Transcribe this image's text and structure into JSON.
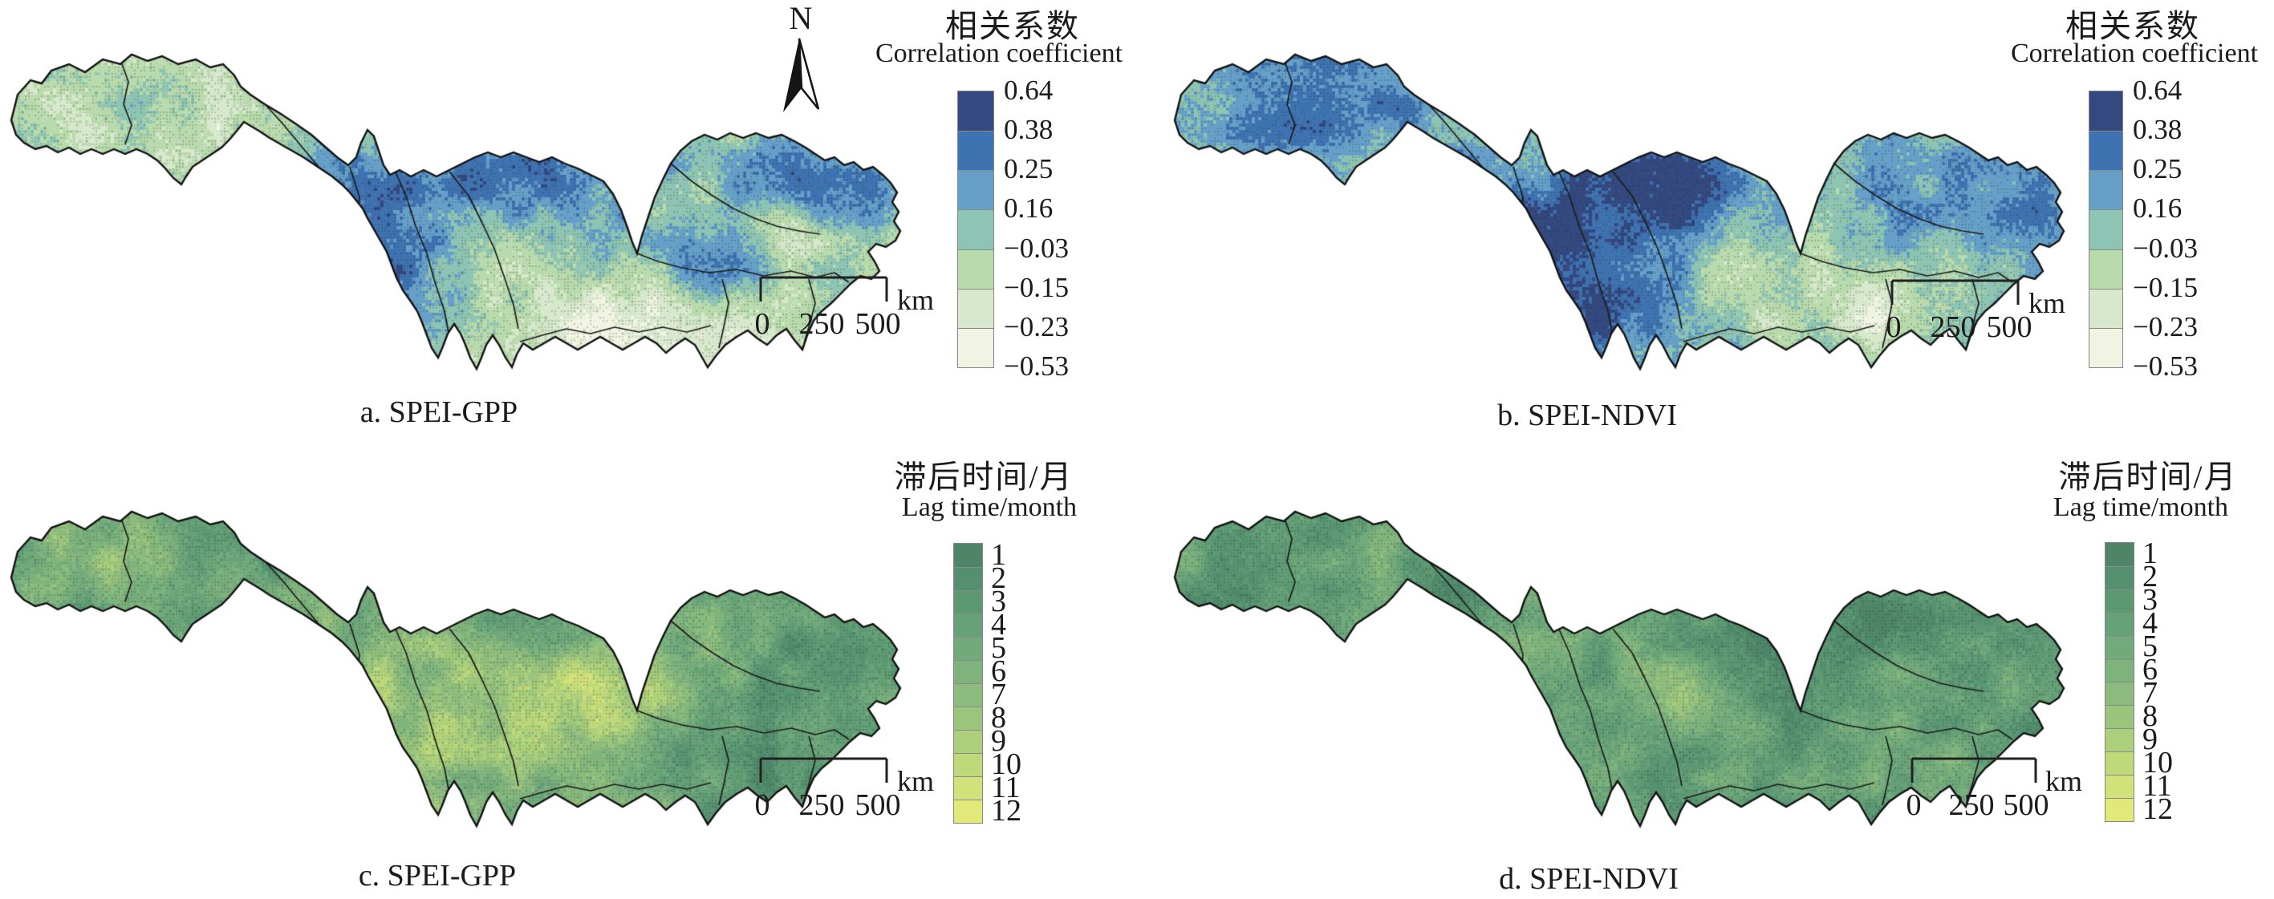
{
  "figure": {
    "north_label": "N",
    "scale_bar": {
      "tick0": "0",
      "tick1": "250",
      "tick2": "500",
      "unit": "km"
    },
    "panels": [
      {
        "id": "a",
        "caption": "a. SPEI-GPP",
        "legend": "correlation"
      },
      {
        "id": "b",
        "caption": "b. SPEI-NDVI",
        "legend": "correlation"
      },
      {
        "id": "c",
        "caption": "c. SPEI-GPP",
        "legend": "lag"
      },
      {
        "id": "d",
        "caption": "d. SPEI-NDVI",
        "legend": "lag"
      }
    ],
    "legends": {
      "correlation": {
        "title_zh": "相关系数",
        "title_en": "Correlation coefficient",
        "tick_labels": [
          "0.64",
          "0.38",
          "0.25",
          "0.16",
          "−0.03",
          "−0.15",
          "−0.23",
          "−0.53"
        ],
        "colors": [
          "#33497f",
          "#3f72b0",
          "#66a0c8",
          "#8ec4b3",
          "#b8daac",
          "#d7e8cd",
          "#f1f4e2"
        ]
      },
      "lag": {
        "title_zh": "滞后时间/月",
        "title_en": "Lag time/month",
        "tick_labels": [
          "1",
          "2",
          "3",
          "4",
          "5",
          "6",
          "7",
          "8",
          "9",
          "10",
          "11",
          "12"
        ],
        "colors": [
          "#4e8568",
          "#549070",
          "#5c9973",
          "#66a178",
          "#72aa7b",
          "#7eb37d",
          "#8dbb7d",
          "#9bc57d",
          "#abcf7b",
          "#bfd97a",
          "#d2e27a",
          "#e2e97a"
        ]
      }
    }
  },
  "chart_data": [
    {
      "type": "heatmap",
      "panel": "a",
      "label": "a. SPEI-GPP",
      "legend_title_zh": "相关系数",
      "legend_title_en": "Correlation coefficient",
      "class_breaks": [
        0.64,
        0.38,
        0.25,
        0.16,
        -0.03,
        -0.15,
        -0.23,
        -0.53
      ],
      "palette": [
        "#33497f",
        "#3f72b0",
        "#66a0c8",
        "#8ec4b3",
        "#b8daac",
        "#d7e8cd",
        "#f1f4e2"
      ],
      "spatial_pattern": "Mostly teal/light-green basin; strong blue (high positive correlation) band in the southwest arm and north-central sub-basins and near the eastern lobe; pale cream (negative correlation) over the west source lobe speckles and the southeast lower basin; stippled significance dots throughout."
    },
    {
      "type": "heatmap",
      "panel": "b",
      "label": "b. SPEI-NDVI",
      "legend_title_zh": "相关系数",
      "legend_title_en": "Correlation coefficient",
      "class_breaks": [
        0.64,
        0.38,
        0.25,
        0.16,
        -0.03,
        -0.15,
        -0.23,
        -0.53
      ],
      "palette": [
        "#33497f",
        "#3f72b0",
        "#66a0c8",
        "#8ec4b3",
        "#b8daac",
        "#d7e8cd",
        "#f1f4e2"
      ],
      "spatial_pattern": "Overall bluer than panel a: dark blue over the western source lobe and a very dark core in the southwest (Jinsha/Yalong) region; lighter green-cream patches in the central-east lower basin."
    },
    {
      "type": "heatmap",
      "panel": "c",
      "label": "c. SPEI-GPP",
      "legend_title_zh": "滞后时间/月",
      "legend_title_en": "Lag time/month",
      "classes": [
        1,
        2,
        3,
        4,
        5,
        6,
        7,
        8,
        9,
        10,
        11,
        12
      ],
      "palette": [
        "#4e8568",
        "#549070",
        "#5c9973",
        "#66a178",
        "#72aa7b",
        "#7eb37d",
        "#8dbb7d",
        "#9bc57d",
        "#abcf7b",
        "#bfd97a",
        "#d2e27a",
        "#e2e97a"
      ],
      "spatial_pattern": "Green basin (short lag) with extensive yellow patches (long lag, 9-12 months) in the central Sichuan-basin area and scattered yellow speckles in the western lobe; east of the basin predominantly dark green (1-3 months)."
    },
    {
      "type": "heatmap",
      "panel": "d",
      "label": "d. SPEI-NDVI",
      "legend_title_zh": "滞后时间/月",
      "legend_title_en": "Lag time/month",
      "classes": [
        1,
        2,
        3,
        4,
        5,
        6,
        7,
        8,
        9,
        10,
        11,
        12
      ],
      "palette": [
        "#4e8568",
        "#549070",
        "#5c9973",
        "#66a178",
        "#72aa7b",
        "#7eb37d",
        "#8dbb7d",
        "#9bc57d",
        "#abcf7b",
        "#bfd97a",
        "#d2e27a",
        "#e2e97a"
      ],
      "spatial_pattern": "Predominantly dark green (1-3 month lag) across the whole basin with sparse scattered yellow pixels, slightly more mid-green/yellow mixing in the central sub-basins."
    },
    {
      "type": "map-annotation",
      "scale_bar_km": [
        0,
        250,
        500
      ],
      "north_arrow": true
    }
  ]
}
